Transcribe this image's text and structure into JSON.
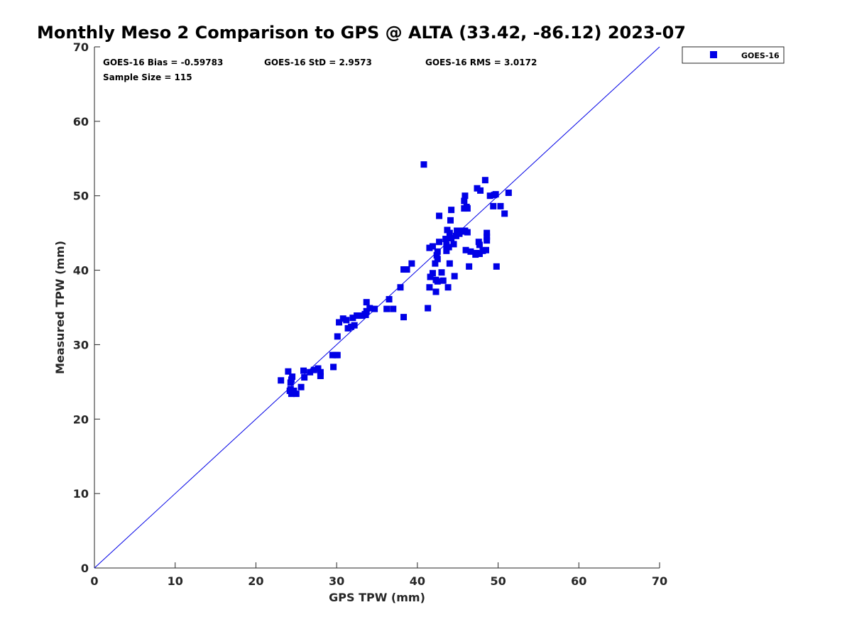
{
  "chart_data": {
    "type": "scatter",
    "title": "Monthly Meso 2 Comparison to GPS @ ALTA (33.42, -86.12) 2023-07",
    "xlabel": "GPS TPW (mm)",
    "ylabel": "Measured TPW (mm)",
    "xlim": [
      0,
      70
    ],
    "ylim": [
      0,
      70
    ],
    "xticks": [
      0,
      10,
      20,
      30,
      40,
      50,
      60,
      70
    ],
    "yticks": [
      0,
      10,
      20,
      30,
      40,
      50,
      60,
      70
    ],
    "grid": false,
    "legend_position": "outside-top-right",
    "reference_line": {
      "from": [
        0,
        0
      ],
      "to": [
        70,
        70
      ],
      "color": "#0000e6"
    },
    "stats": {
      "bias": "GOES-16 Bias = -0.59783",
      "std": "GOES-16 StD = 2.9573",
      "rms": "GOES-16 RMS = 3.0172",
      "sample": "Sample Size = 115"
    },
    "series": [
      {
        "name": "GOES-16",
        "color": "#0000e6",
        "marker": "square",
        "points": [
          [
            23.1,
            25.2
          ],
          [
            24.0,
            26.4
          ],
          [
            24.3,
            24.9
          ],
          [
            24.4,
            25.3
          ],
          [
            24.5,
            25.7
          ],
          [
            24.3,
            24.0
          ],
          [
            24.4,
            23.4
          ],
          [
            24.7,
            23.8
          ],
          [
            25.0,
            23.4
          ],
          [
            25.6,
            24.3
          ],
          [
            25.9,
            26.5
          ],
          [
            26.0,
            25.6
          ],
          [
            26.7,
            26.3
          ],
          [
            27.2,
            26.6
          ],
          [
            27.7,
            26.8
          ],
          [
            28.0,
            25.8
          ],
          [
            28.0,
            26.3
          ],
          [
            29.5,
            28.6
          ],
          [
            29.6,
            27.0
          ],
          [
            29.9,
            28.6
          ],
          [
            30.1,
            28.6
          ],
          [
            30.1,
            31.1
          ],
          [
            30.3,
            33.0
          ],
          [
            30.8,
            33.5
          ],
          [
            31.2,
            33.3
          ],
          [
            31.4,
            32.2
          ],
          [
            31.8,
            32.4
          ],
          [
            32.0,
            33.6
          ],
          [
            32.2,
            32.6
          ],
          [
            32.5,
            33.9
          ],
          [
            32.8,
            33.9
          ],
          [
            33.1,
            33.9
          ],
          [
            33.5,
            34.1
          ],
          [
            33.7,
            34.5
          ],
          [
            33.7,
            35.7
          ],
          [
            34.1,
            34.9
          ],
          [
            34.7,
            34.8
          ],
          [
            36.2,
            34.8
          ],
          [
            36.5,
            36.1
          ],
          [
            37.0,
            34.8
          ],
          [
            37.9,
            37.7
          ],
          [
            38.3,
            40.1
          ],
          [
            38.3,
            33.7
          ],
          [
            38.7,
            40.1
          ],
          [
            39.3,
            40.9
          ],
          [
            40.8,
            54.2
          ],
          [
            41.3,
            34.9
          ],
          [
            41.5,
            43.0
          ],
          [
            41.5,
            37.7
          ],
          [
            41.6,
            39.1
          ],
          [
            41.9,
            43.2
          ],
          [
            41.9,
            39.6
          ],
          [
            42.2,
            40.9
          ],
          [
            42.3,
            38.7
          ],
          [
            42.3,
            37.1
          ],
          [
            42.4,
            42.0
          ],
          [
            42.5,
            42.5
          ],
          [
            42.5,
            41.5
          ],
          [
            42.5,
            38.5
          ],
          [
            42.7,
            47.3
          ],
          [
            42.7,
            43.8
          ],
          [
            43.0,
            39.7
          ],
          [
            43.2,
            38.6
          ],
          [
            43.5,
            44.2
          ],
          [
            43.6,
            43.4
          ],
          [
            43.6,
            42.6
          ],
          [
            43.7,
            45.4
          ],
          [
            43.8,
            37.7
          ],
          [
            43.9,
            43.1
          ],
          [
            44.0,
            45.0
          ],
          [
            44.0,
            40.9
          ],
          [
            44.1,
            46.7
          ],
          [
            44.2,
            48.1
          ],
          [
            44.2,
            44.3
          ],
          [
            44.5,
            43.5
          ],
          [
            44.6,
            39.2
          ],
          [
            44.8,
            44.6
          ],
          [
            45.0,
            45.0
          ],
          [
            45.2,
            44.9
          ],
          [
            45.4,
            45.3
          ],
          [
            45.8,
            48.3
          ],
          [
            45.8,
            49.3
          ],
          [
            45.9,
            50.0
          ],
          [
            45.9,
            45.3
          ],
          [
            46.0,
            42.7
          ],
          [
            46.1,
            48.5
          ],
          [
            46.2,
            48.3
          ],
          [
            46.2,
            45.1
          ],
          [
            46.4,
            40.5
          ],
          [
            46.6,
            42.5
          ],
          [
            47.2,
            42.1
          ],
          [
            47.3,
            42.3
          ],
          [
            47.4,
            51.0
          ],
          [
            47.6,
            43.8
          ],
          [
            47.7,
            43.4
          ],
          [
            47.7,
            42.2
          ],
          [
            47.8,
            50.7
          ],
          [
            48.1,
            42.6
          ],
          [
            48.4,
            52.1
          ],
          [
            48.5,
            42.7
          ],
          [
            48.6,
            44.0
          ],
          [
            48.6,
            44.5
          ],
          [
            48.6,
            45.0
          ],
          [
            49.0,
            50.0
          ],
          [
            49.4,
            48.6
          ],
          [
            49.5,
            50.1
          ],
          [
            49.7,
            50.2
          ],
          [
            49.8,
            40.5
          ],
          [
            50.3,
            48.6
          ],
          [
            50.8,
            47.6
          ],
          [
            51.3,
            50.4
          ],
          [
            44.9,
            45.3
          ],
          [
            45.5,
            45.2
          ],
          [
            33.6,
            34.0
          ],
          [
            24.2,
            23.8
          ]
        ]
      }
    ]
  }
}
